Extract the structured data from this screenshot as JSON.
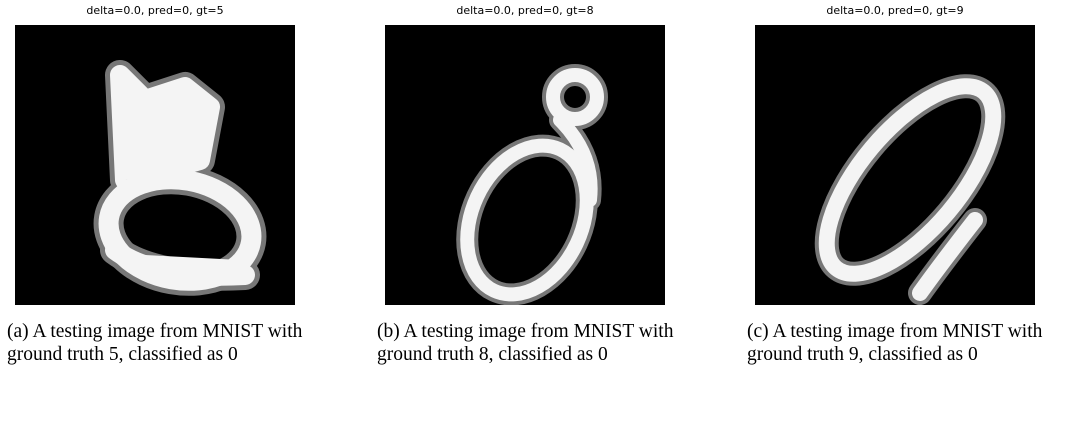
{
  "figures": [
    {
      "title": "delta=0.0, pred=0, gt=5",
      "caption": "(a) A testing image from MNIST with ground truth 5, classified as 0"
    },
    {
      "title": "delta=0.0, pred=0, gt=8",
      "caption": "(b) A testing image from MNIST with ground truth 8, classified as 0"
    },
    {
      "title": "delta=0.0, pred=0, gt=9",
      "caption": "(c) A testing image from MNIST with ground truth 9, classified as 0"
    }
  ]
}
